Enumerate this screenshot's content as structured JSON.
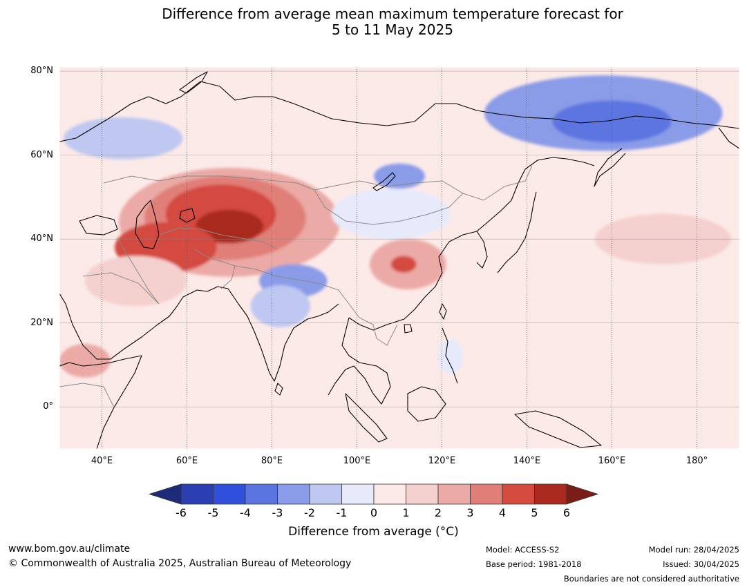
{
  "title": {
    "line1": "Difference from average mean maximum temperature forecast for",
    "line2": "5 to 11 May 2025"
  },
  "map": {
    "lon_range": [
      30,
      190
    ],
    "lat_range": [
      -10,
      81
    ],
    "lon_ticks": [
      {
        "value": 40,
        "label": "40°E"
      },
      {
        "value": 60,
        "label": "60°E"
      },
      {
        "value": 80,
        "label": "80°E"
      },
      {
        "value": 100,
        "label": "100°E"
      },
      {
        "value": 120,
        "label": "120°E"
      },
      {
        "value": 140,
        "label": "140°E"
      },
      {
        "value": 160,
        "label": "160°E"
      },
      {
        "value": 180,
        "label": "180°"
      }
    ],
    "lat_ticks": [
      {
        "value": 80,
        "label": "80°N"
      },
      {
        "value": 60,
        "label": "60°N"
      },
      {
        "value": 40,
        "label": "40°N"
      },
      {
        "value": 20,
        "label": "20°N"
      },
      {
        "value": 0,
        "label": "0°"
      }
    ],
    "background_anomaly": 0.6,
    "anomaly_regions": [
      {
        "name": "central-asia-warm-outer",
        "lon": 70,
        "lat": 44,
        "rx_deg": 26,
        "ry_deg": 13,
        "value": 2.5
      },
      {
        "name": "central-asia-warm-mid",
        "lon": 69,
        "lat": 45,
        "rx_deg": 19,
        "ry_deg": 10,
        "value": 3.5
      },
      {
        "name": "central-asia-warm-inner",
        "lon": 68,
        "lat": 46,
        "rx_deg": 13,
        "ry_deg": 7,
        "value": 4.5
      },
      {
        "name": "central-asia-warm-core",
        "lon": 70,
        "lat": 43,
        "rx_deg": 8,
        "ry_deg": 4,
        "value": 5.5
      },
      {
        "name": "iran-warm",
        "lon": 55,
        "lat": 38,
        "rx_deg": 12,
        "ry_deg": 6,
        "value": 4.2
      },
      {
        "name": "arabia-warm",
        "lon": 48,
        "lat": 30,
        "rx_deg": 12,
        "ry_deg": 6,
        "value": 1.5
      },
      {
        "name": "east-china-warm",
        "lon": 112,
        "lat": 34,
        "rx_deg": 9,
        "ry_deg": 6,
        "value": 2.5
      },
      {
        "name": "east-china-warm-core",
        "lon": 111,
        "lat": 34,
        "rx_deg": 3,
        "ry_deg": 2,
        "value": 4.5
      },
      {
        "name": "pacific-warm",
        "lon": 172,
        "lat": 40,
        "rx_deg": 16,
        "ry_deg": 6,
        "value": 1.5
      },
      {
        "name": "east-africa-warm",
        "lon": 36,
        "lat": 11,
        "rx_deg": 6,
        "ry_deg": 4,
        "value": 2.5
      },
      {
        "name": "mongolia-cool",
        "lon": 108,
        "lat": 46,
        "rx_deg": 14,
        "ry_deg": 6,
        "value": -0.5
      },
      {
        "name": "baikal-cool",
        "lon": 110,
        "lat": 55,
        "rx_deg": 6,
        "ry_deg": 3,
        "value": -2.5
      },
      {
        "name": "tibet-cool",
        "lon": 85,
        "lat": 30,
        "rx_deg": 8,
        "ry_deg": 4,
        "value": -2.5
      },
      {
        "name": "india-cool",
        "lon": 82,
        "lat": 24,
        "rx_deg": 7,
        "ry_deg": 5,
        "value": -1.5
      },
      {
        "name": "siberia-cool-outer",
        "lon": 158,
        "lat": 70,
        "rx_deg": 28,
        "ry_deg": 9,
        "value": -2.5
      },
      {
        "name": "siberia-cool-inner",
        "lon": 160,
        "lat": 68,
        "rx_deg": 14,
        "ry_deg": 5,
        "value": -3.5
      },
      {
        "name": "west-siberia-cool",
        "lon": 45,
        "lat": 64,
        "rx_deg": 14,
        "ry_deg": 5,
        "value": -1.5
      },
      {
        "name": "philippines-cool",
        "lon": 122,
        "lat": 12,
        "rx_deg": 3,
        "ry_deg": 4,
        "value": -0.5
      }
    ]
  },
  "colorbar": {
    "boundaries": [
      "-6",
      "-5",
      "-4",
      "-3",
      "-2",
      "-1",
      "0",
      "1",
      "2",
      "3",
      "4",
      "5",
      "6"
    ],
    "colors": [
      "#2a3eb1",
      "#2f4fdc",
      "#5b75e0",
      "#8a9be8",
      "#bec8f1",
      "#e6eafb",
      "#fceae8",
      "#f4d0cf",
      "#ebaaa6",
      "#e07f78",
      "#d44a3f",
      "#a9291f"
    ],
    "under_color": "#1d2b78",
    "over_color": "#7a1d17",
    "label": "Difference from average (°C)"
  },
  "footer": {
    "website": "www.bom.gov.au/climate",
    "copyright": "© Commonwealth of Australia 2025, Australian Bureau of Meteorology",
    "model": "Model: ACCESS-S2",
    "base_period": "Base period: 1981-2018",
    "model_run": "Model run: 28/04/2025",
    "issued": "Issued: 30/04/2025",
    "boundaries_note": "Boundaries are not considered authoritative"
  }
}
